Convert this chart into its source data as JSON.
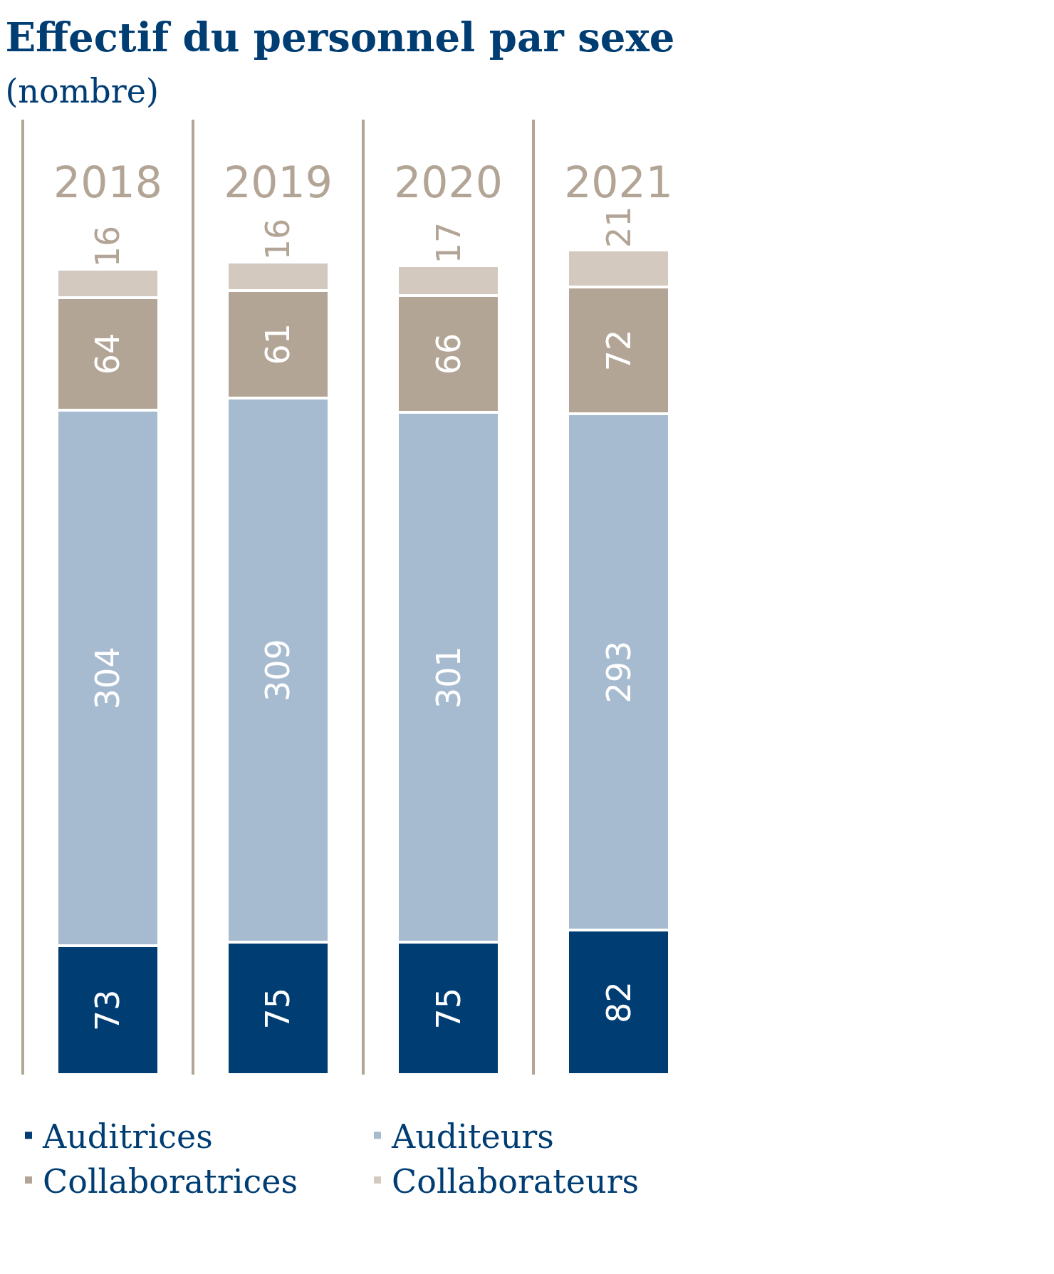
{
  "chart_data": {
    "type": "bar",
    "title": "Effectif du personnel par sexe",
    "subtitle": "(nombre)",
    "categories": [
      "2018",
      "2019",
      "2020",
      "2021"
    ],
    "stacked": true,
    "data_labels": true,
    "legend": "bottom",
    "series": [
      {
        "name": "Auditrices",
        "color": "#003d73",
        "values": [
          73,
          75,
          75,
          82
        ]
      },
      {
        "name": "Auditeurs",
        "color": "#a7bbd0",
        "values": [
          304,
          309,
          301,
          293
        ]
      },
      {
        "name": "Collaboratrices",
        "color": "#b3a596",
        "values": [
          64,
          61,
          66,
          72
        ]
      },
      {
        "name": "Collaborateurs",
        "color": "#d3c9bf",
        "values": [
          16,
          16,
          17,
          21
        ]
      }
    ]
  }
}
